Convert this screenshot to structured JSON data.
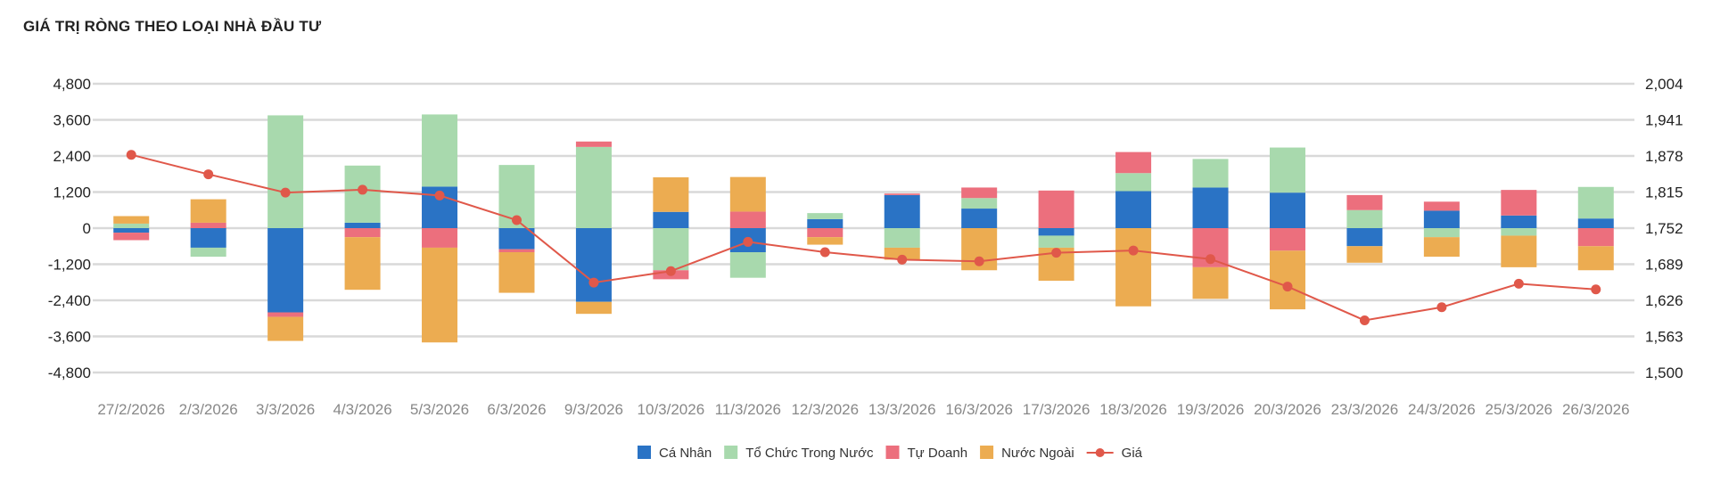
{
  "chart_data": {
    "type": "bar",
    "title": "GIÁ TRỊ RÒNG THEO LOẠI NHÀ ĐẦU TƯ",
    "categories": [
      "27/2/2026",
      "2/3/2026",
      "3/3/2026",
      "4/3/2026",
      "5/3/2026",
      "6/3/2026",
      "9/3/2026",
      "10/3/2026",
      "11/3/2026",
      "12/3/2026",
      "13/3/2026",
      "16/3/2026",
      "17/3/2026",
      "18/3/2026",
      "19/3/2026",
      "20/3/2026",
      "23/3/2026",
      "24/3/2026",
      "25/3/2026",
      "26/3/2026"
    ],
    "stacked": true,
    "y_left": {
      "ticks": [
        "4,800",
        "3,600",
        "2,400",
        "1,200",
        "0",
        "-1,200",
        "-2,400",
        "-3,600",
        "-4,800"
      ],
      "ylim": [
        -4800,
        4800
      ]
    },
    "y_right": {
      "ticks": [
        "2,004",
        "1,941",
        "1,878",
        "1,815",
        "1,752",
        "1,689",
        "1,626",
        "1,563",
        "1,500"
      ],
      "ylim": [
        1500,
        2004
      ]
    },
    "grid": true,
    "legend_position": "bottom-center",
    "series": [
      {
        "name": "Cá Nhân",
        "color": "#2a73c5",
        "type": "bar",
        "values": [
          -150,
          -650,
          -2800,
          180,
          1380,
          -700,
          -2450,
          540,
          -800,
          300,
          1100,
          650,
          -250,
          1230,
          1350,
          1180,
          -600,
          580,
          420,
          320
        ]
      },
      {
        "name": "Tổ Chức Trong Nước",
        "color": "#a8d9ad",
        "type": "bar",
        "values": [
          150,
          -300,
          3750,
          1900,
          2400,
          2100,
          2700,
          -1400,
          -850,
          200,
          -650,
          350,
          -400,
          600,
          950,
          1500,
          600,
          -300,
          -250,
          1050
        ]
      },
      {
        "name": "Tự Doanh",
        "color": "#ec6f7d",
        "type": "bar",
        "values": [
          -250,
          180,
          -150,
          -300,
          -650,
          -100,
          180,
          -300,
          550,
          -300,
          50,
          350,
          1250,
          700,
          -1300,
          -750,
          500,
          300,
          850,
          -600
        ]
      },
      {
        "name": "Nước Ngoài",
        "color": "#ecac51",
        "type": "bar",
        "values": [
          250,
          780,
          -800,
          -1750,
          -3150,
          -1350,
          -400,
          1150,
          1150,
          -250,
          -400,
          -1400,
          -1100,
          -2600,
          -1050,
          -1950,
          -550,
          -650,
          -1050,
          -800
        ]
      },
      {
        "name": "Giá",
        "color": "#e0584a",
        "type": "line",
        "axis": "right",
        "values": [
          1880,
          1846,
          1814,
          1819,
          1809,
          1766,
          1657,
          1677,
          1728,
          1710,
          1697,
          1694,
          1709,
          1713,
          1698,
          1650,
          1591,
          1614,
          1655,
          1645
        ]
      }
    ]
  }
}
